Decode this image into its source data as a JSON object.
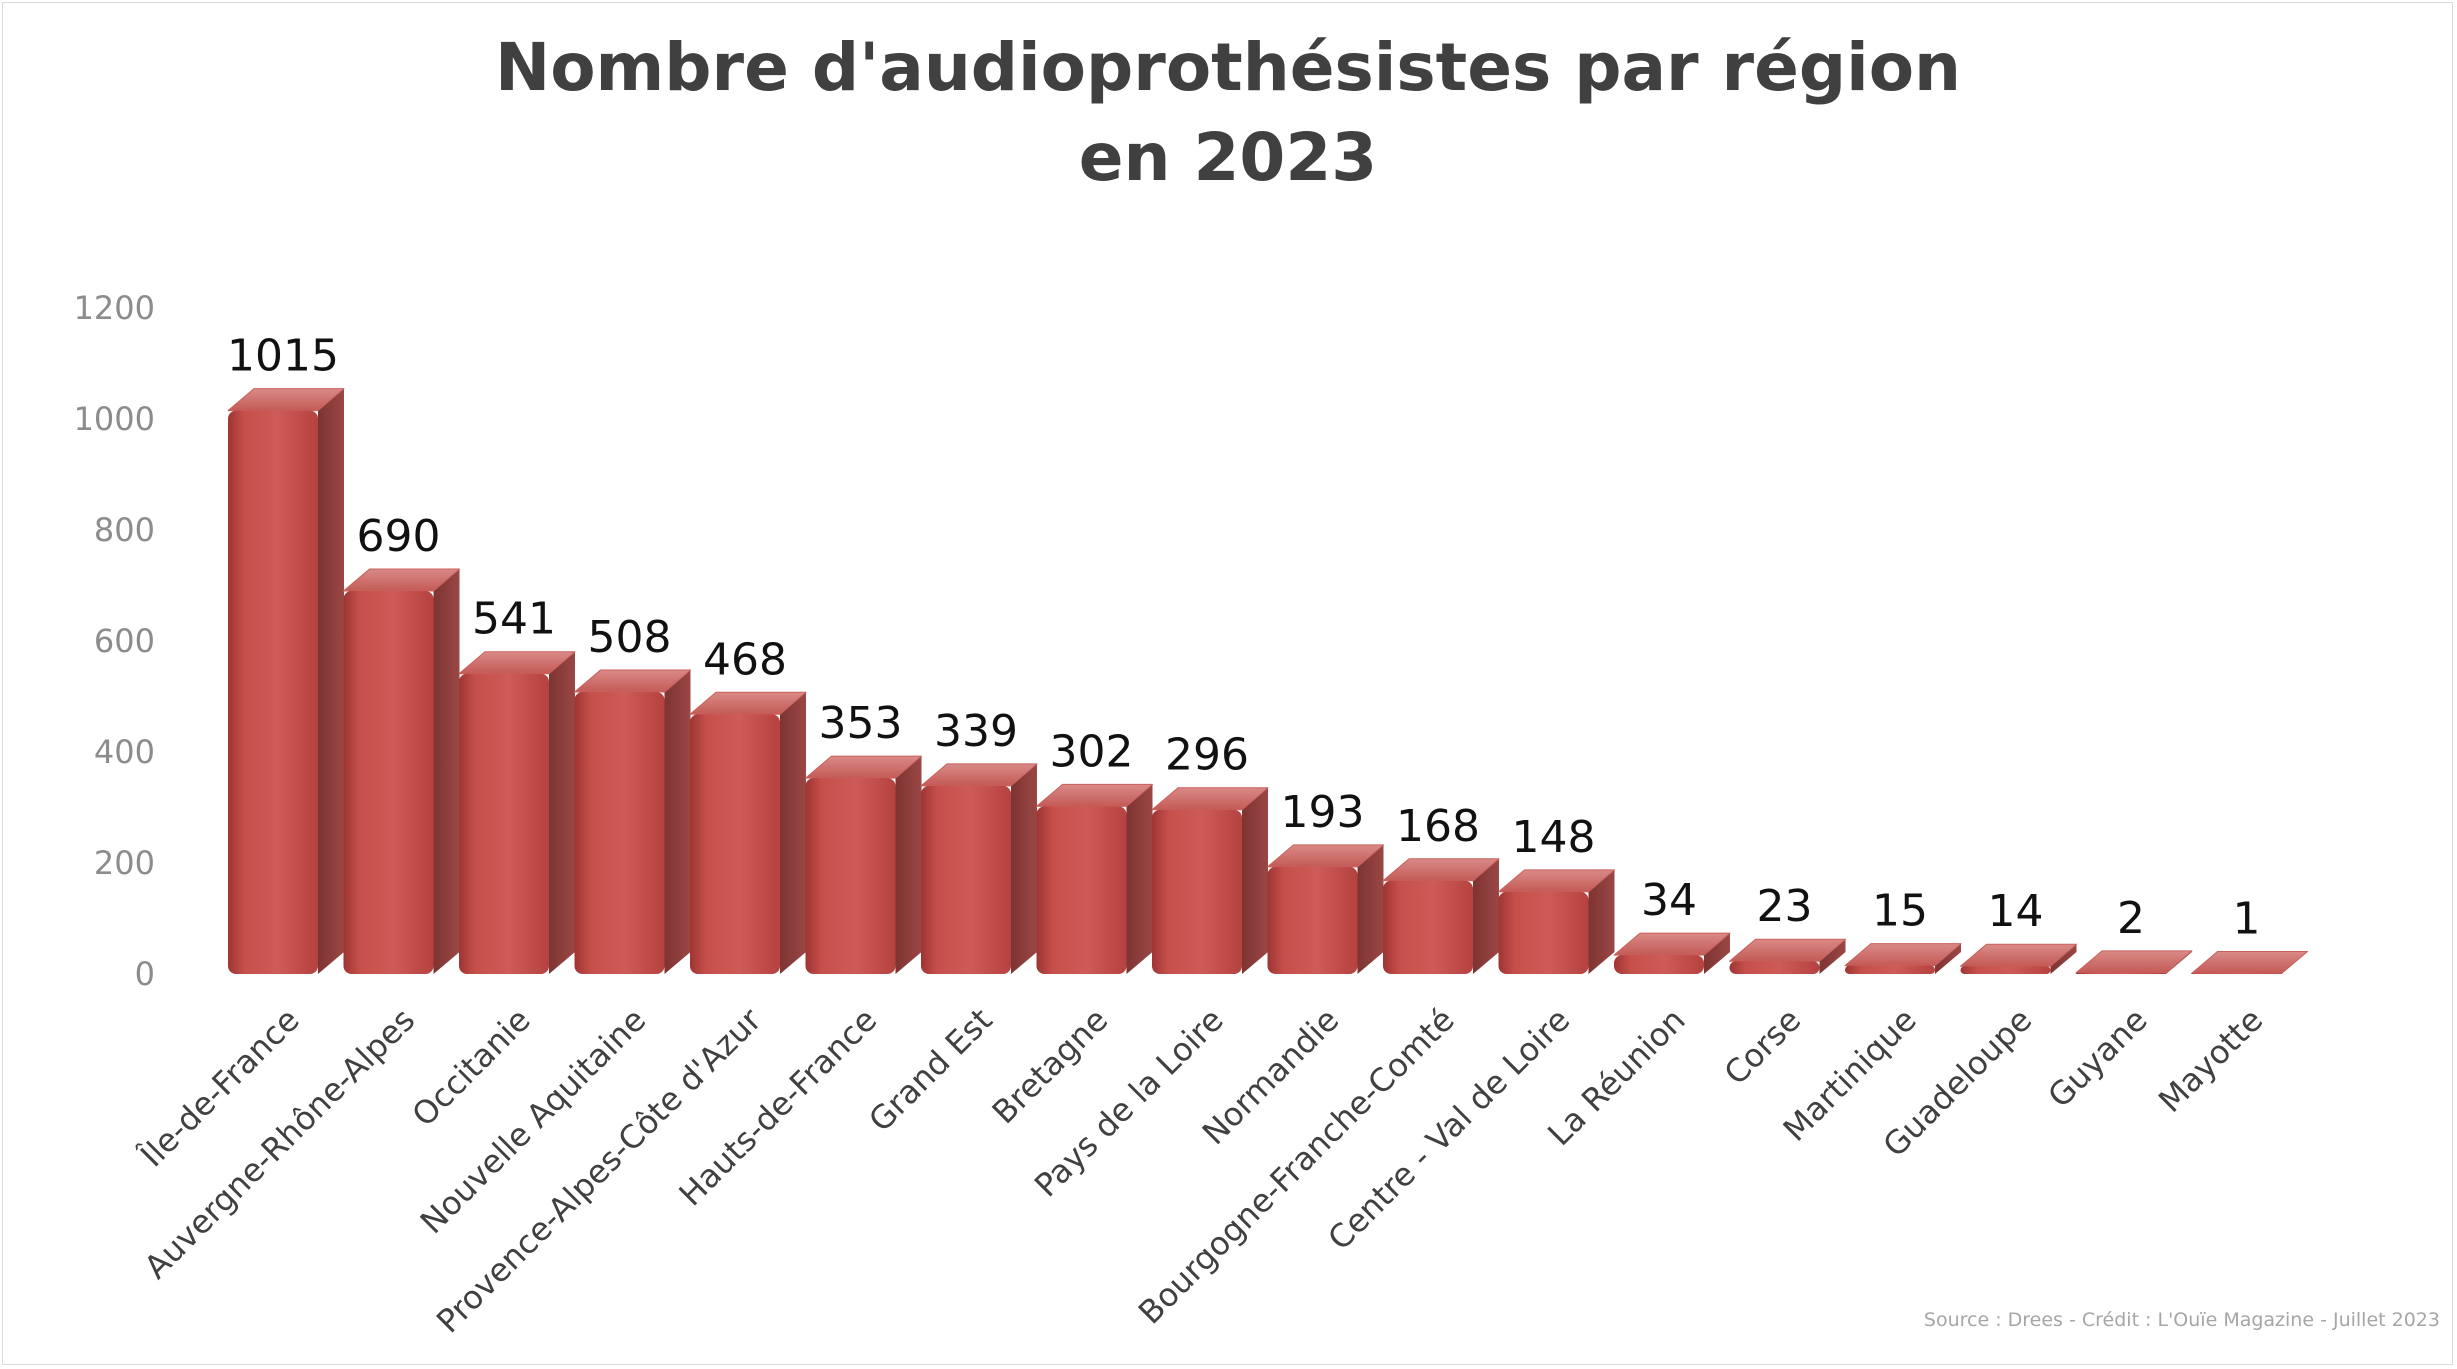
{
  "chart_data": {
    "type": "bar",
    "title": [
      "Nombre d'audioprothésistes par région",
      "en 2023"
    ],
    "categories": [
      "Île-de-France",
      "Auvergne-Rhône-Alpes",
      "Occitanie",
      "Nouvelle Aquitaine",
      "Provence-Alpes-Côte d'Azur",
      "Hauts-de-France",
      "Grand Est",
      "Bretagne",
      "Pays de la Loire",
      "Normandie",
      "Bourgogne-Franche-Comté",
      "Centre - Val de Loire",
      "La Réunion",
      "Corse",
      "Martinique",
      "Guadeloupe",
      "Guyane",
      "Mayotte"
    ],
    "values": [
      1015,
      690,
      541,
      508,
      468,
      353,
      339,
      302,
      296,
      193,
      168,
      148,
      34,
      23,
      15,
      14,
      2,
      1
    ],
    "ylim": [
      0,
      1200
    ],
    "yticks": [
      0,
      200,
      400,
      600,
      800,
      1000,
      1200
    ],
    "xlabel": "",
    "ylabel": "",
    "grid": false,
    "legend": "none",
    "colors": {
      "bar": "#c0504d",
      "bar_top": "#d06c69",
      "bar_side": "#8f3a38"
    },
    "source": "Source : Drees - Crédit : L'Ouïe Magazine - Juillet 2023"
  }
}
